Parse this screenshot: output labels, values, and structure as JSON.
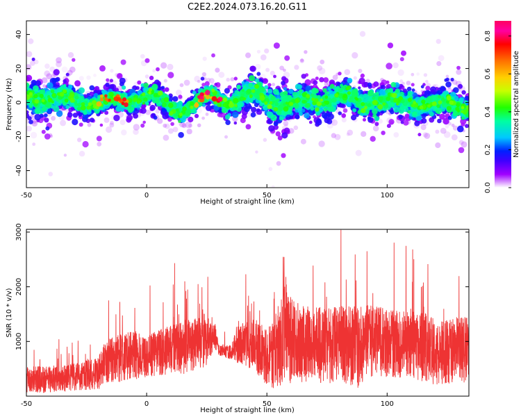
{
  "title": "C2E2.2024.073.16.20.G11",
  "chart_data": [
    {
      "type": "heatmap",
      "xlabel": "Height of straight line (km)",
      "ylabel": "Frequency (Hz)",
      "xlim": [
        -50,
        134
      ],
      "ylim": [
        -50,
        48
      ],
      "xticks": [
        -50,
        0,
        50,
        100
      ],
      "yticks": [
        -40,
        -20,
        0,
        20,
        40
      ],
      "ridge": {
        "x": [
          -50,
          -40,
          -30,
          -20,
          -15,
          -10,
          -5,
          0,
          5,
          10,
          15,
          20,
          25,
          30,
          35,
          40,
          45,
          50,
          55,
          60,
          65,
          70,
          80,
          90,
          100,
          110,
          120,
          130,
          134
        ],
        "center_hz": [
          4,
          3,
          1,
          0,
          0,
          1,
          3,
          4,
          1,
          -3,
          -3,
          -1,
          2,
          3,
          1,
          3,
          4,
          2,
          0,
          -2,
          0,
          2,
          3,
          1,
          0,
          1,
          -2,
          0,
          -3
        ],
        "spread_hz": [
          10,
          9,
          7,
          7,
          6,
          6,
          6,
          6,
          6,
          6,
          6,
          6,
          6,
          6,
          6,
          8,
          10,
          10,
          11,
          11,
          9,
          8,
          8,
          9,
          8,
          8,
          7,
          7,
          7
        ]
      },
      "colorbar": {
        "label": "Normalized spectral amplitude",
        "range": [
          0,
          0.88
        ],
        "ticks": [
          0.0,
          0.2,
          0.4,
          0.6,
          0.8
        ],
        "tick_labels": [
          "0.0",
          "0.2",
          "0.4",
          "0.6",
          "0.8"
        ],
        "colors": [
          "#ffffff",
          "#a000ff",
          "#4000ff",
          "#0020ff",
          "#00c8ff",
          "#00ffa0",
          "#20ff00",
          "#c8ff00",
          "#ffd000",
          "#ff7000",
          "#ff0000",
          "#ff00a0",
          "#ff0060"
        ]
      }
    },
    {
      "type": "line",
      "xlabel": "Height of straight line (km)",
      "ylabel": "SNR (10 * v/v)",
      "xlim": [
        -50,
        134
      ],
      "ylim": [
        0,
        3050
      ],
      "xticks": [
        -50,
        0,
        50,
        100
      ],
      "yticks": [
        1000,
        2000,
        3000
      ],
      "color": "#ee3333",
      "envelope": {
        "x": [
          -50,
          -40,
          -30,
          -20,
          -17,
          -10,
          -5,
          0,
          10,
          15,
          20,
          25,
          28,
          30,
          35,
          38,
          45,
          50,
          55,
          58,
          60,
          65,
          70,
          75,
          80,
          88,
          95,
          100,
          110,
          115,
          120,
          130,
          134
        ],
        "base": [
          300,
          300,
          350,
          420,
          650,
          700,
          750,
          750,
          850,
          900,
          950,
          1050,
          1150,
          850,
          800,
          950,
          950,
          700,
          900,
          1300,
          1000,
          950,
          950,
          900,
          950,
          900,
          1050,
          950,
          950,
          900,
          800,
          850,
          850
        ],
        "amp": [
          250,
          250,
          250,
          300,
          400,
          450,
          450,
          400,
          450,
          500,
          500,
          500,
          300,
          100,
          150,
          350,
          500,
          500,
          800,
          900,
          800,
          700,
          700,
          700,
          700,
          750,
          650,
          650,
          600,
          650,
          600,
          600,
          600
        ]
      }
    }
  ]
}
